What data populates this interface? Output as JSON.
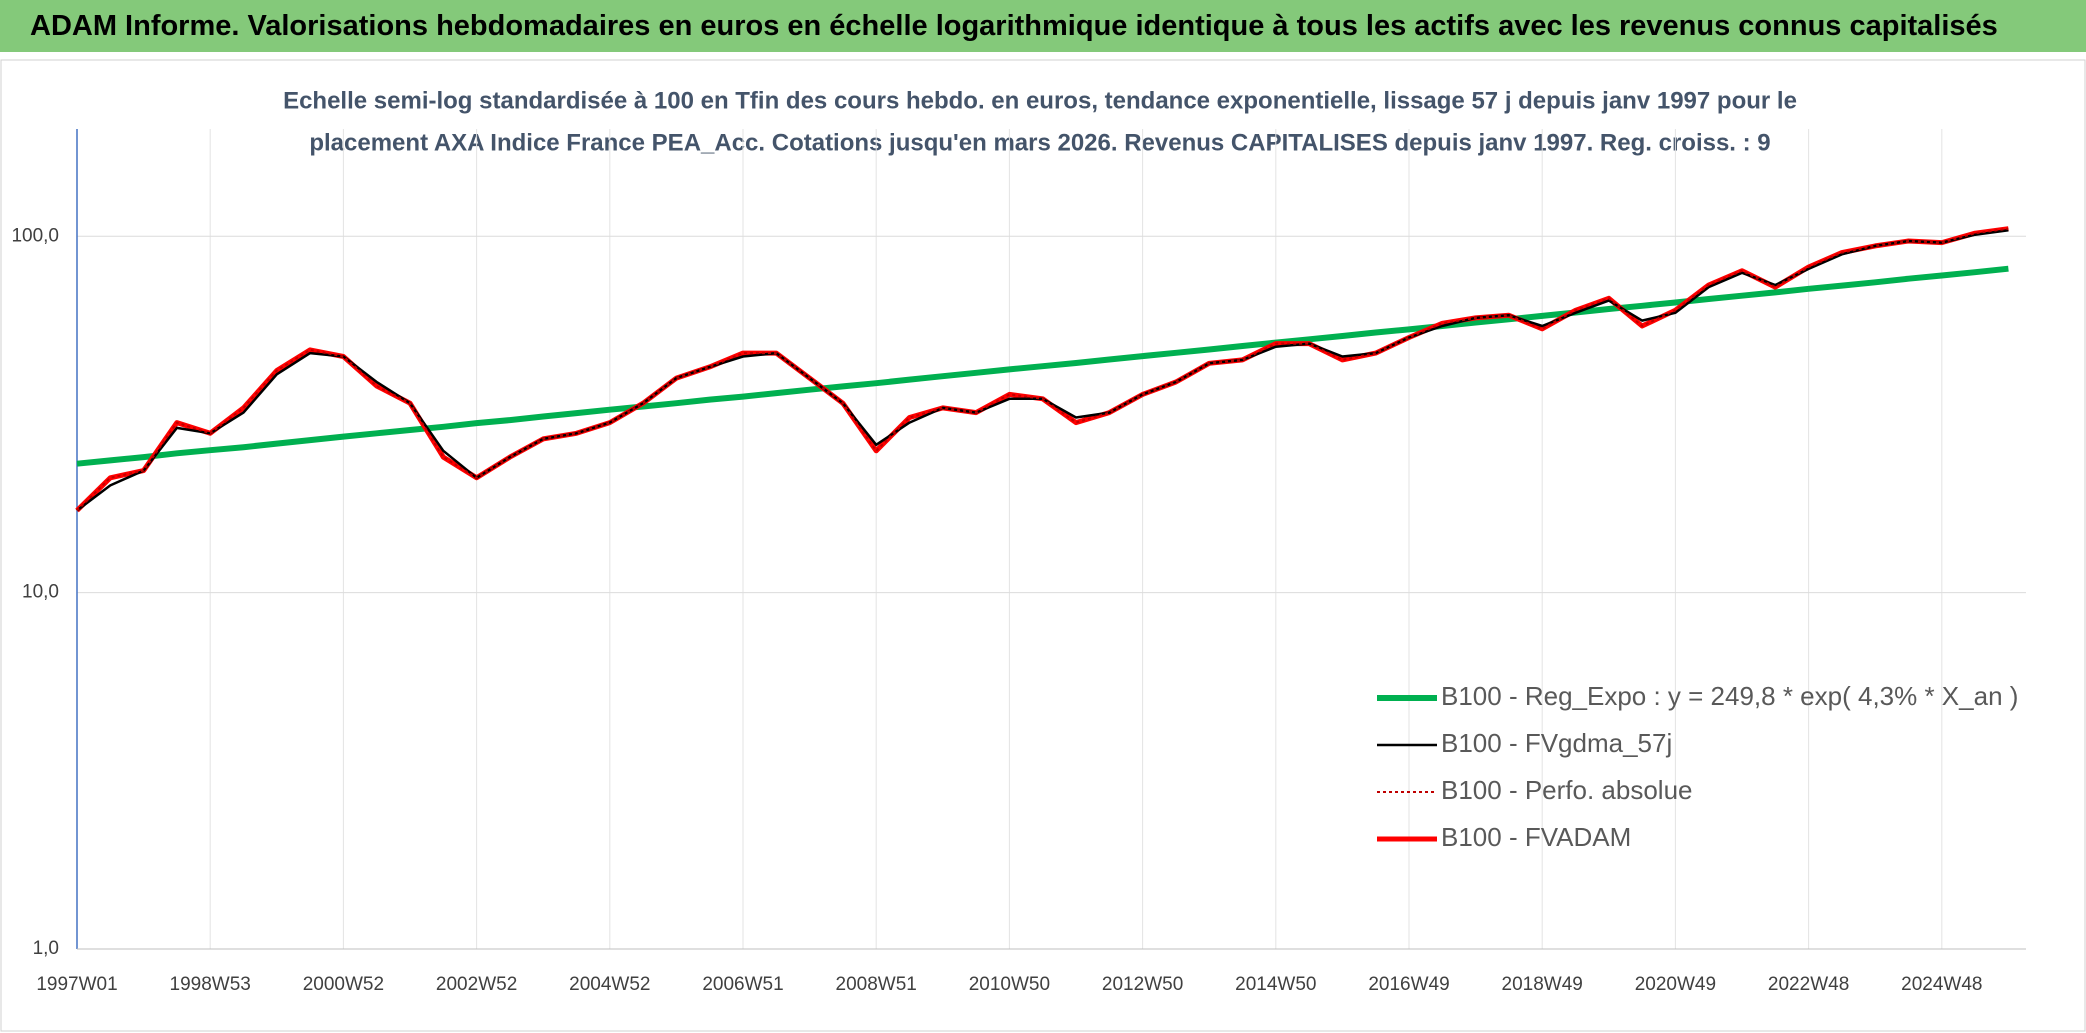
{
  "header": {
    "title": "ADAM Informe. Valorisations hebdomadaires en euros en échelle logarithmique identique à tous les actifs avec les revenus connus capitalisés"
  },
  "chart_data": {
    "type": "line",
    "subtitle": [
      "Echelle semi-log standardisée à 100 en Tfin des cours hebdo. en euros, tendance exponentielle, lissage 57 j depuis janv 1997 pour le",
      "placement AXA Indice France PEA_Acc. Cotations jusqu'en mars 2026. Revenus CAPITALISES depuis janv 1997. Reg. croiss. : 9"
    ],
    "categories": [
      "1997W01",
      null,
      null,
      null,
      "1998W53",
      null,
      null,
      null,
      "2000W52",
      null,
      null,
      null,
      "2002W52",
      null,
      null,
      null,
      "2004W52",
      null,
      null,
      null,
      "2006W51",
      null,
      null,
      null,
      "2008W51",
      null,
      null,
      null,
      "2010W50",
      null,
      null,
      null,
      "2012W50",
      null,
      null,
      null,
      "2014W50",
      null,
      null,
      null,
      "2016W49",
      null,
      null,
      null,
      "2018W49",
      null,
      null,
      null,
      "2020W49",
      null,
      null,
      null,
      "2022W48",
      null,
      null,
      null,
      "2024W48",
      null,
      null
    ],
    "log_scale": true,
    "ylim": [
      1,
      200
    ],
    "yticks": [
      {
        "value": 1,
        "label": "1,0"
      },
      {
        "value": 10,
        "label": "10,0"
      },
      {
        "value": 100,
        "label": "100,0"
      }
    ],
    "grid": true,
    "legend": "lower right",
    "series": [
      {
        "name": "B100 - Reg_Expo : y = 249,8 * exp( 4,3% *  X_an )",
        "color": "#00b050",
        "style": "solid",
        "width": 6,
        "values": [
          23.0,
          23.5,
          24.0,
          24.6,
          25.1,
          25.6,
          26.2,
          26.8,
          27.4,
          28.0,
          28.6,
          29.2,
          29.9,
          30.5,
          31.2,
          31.9,
          32.6,
          33.3,
          34.0,
          34.8,
          35.5,
          36.3,
          37.1,
          37.9,
          38.7,
          39.6,
          40.5,
          41.4,
          42.3,
          43.2,
          44.1,
          45.1,
          46.1,
          47.1,
          48.1,
          49.2,
          50.3,
          51.4,
          52.5,
          53.7,
          54.8,
          56.0,
          57.3,
          58.5,
          59.8,
          61.1,
          62.5,
          63.8,
          65.2,
          66.7,
          68.1,
          69.6,
          71.2,
          72.7,
          74.3,
          76.0,
          77.6,
          79.3,
          81.1
        ]
      },
      {
        "name": "B100 - FVgdma_57j",
        "color": "#000000",
        "style": "solid",
        "width": 2.5,
        "values": [
          17,
          20,
          22,
          29,
          28,
          32,
          41,
          47,
          46,
          39,
          34,
          25,
          21,
          24,
          27,
          28,
          30,
          34,
          40,
          43,
          46,
          47,
          40,
          34,
          26,
          30,
          33,
          32,
          35,
          35,
          31,
          32,
          36,
          39,
          44,
          45,
          49,
          50,
          46,
          47,
          52,
          56,
          59,
          60,
          56,
          61,
          66,
          58,
          61,
          72,
          79,
          73,
          81,
          89,
          94,
          97,
          96,
          101,
          104
        ]
      },
      {
        "name": "B100 - Perfo. absolue",
        "color": "#c00000",
        "style": "dotted",
        "width": 2,
        "values": [
          17,
          21,
          22,
          30,
          28,
          33,
          42,
          48,
          46,
          38,
          34,
          24,
          21,
          24,
          27,
          28,
          30,
          34,
          40,
          43,
          47,
          47,
          40,
          34,
          25,
          31,
          33,
          32,
          36,
          35,
          30,
          32,
          36,
          39,
          44,
          45,
          50,
          50,
          45,
          47,
          52,
          57,
          59,
          60,
          55,
          62,
          67,
          56,
          62,
          73,
          80,
          72,
          82,
          90,
          94,
          97,
          96,
          102,
          105
        ]
      },
      {
        "name": "B100 - FVADAM",
        "color": "#ff0000",
        "style": "solid",
        "width": 5,
        "values": [
          17,
          21,
          22,
          30,
          28,
          33,
          42,
          48,
          46,
          38,
          34,
          24,
          21,
          24,
          27,
          28,
          30,
          34,
          40,
          43,
          47,
          47,
          40,
          34,
          25,
          31,
          33,
          32,
          36,
          35,
          30,
          32,
          36,
          39,
          44,
          45,
          50,
          50,
          45,
          47,
          52,
          57,
          59,
          60,
          55,
          62,
          67,
          56,
          62,
          73,
          80,
          72,
          82,
          90,
          94,
          97,
          96,
          102,
          105
        ]
      }
    ]
  }
}
